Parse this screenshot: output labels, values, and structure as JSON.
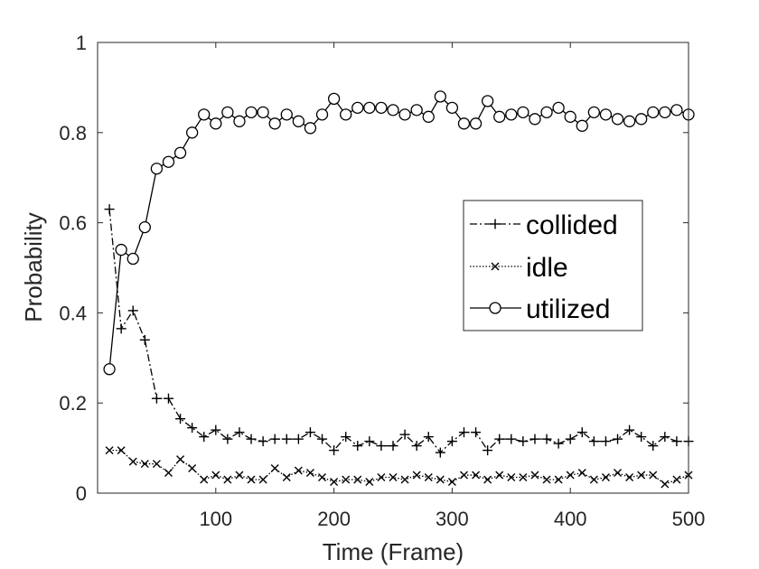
{
  "chart_data": {
    "type": "line",
    "title": "",
    "xlabel": "Time (Frame)",
    "ylabel": "Probability",
    "xlim": [
      0,
      500
    ],
    "ylim": [
      0,
      1
    ],
    "xticks": [
      100,
      200,
      300,
      400,
      500
    ],
    "yticks": [
      0,
      0.2,
      0.4,
      0.6,
      0.8,
      1
    ],
    "ytick_labels": [
      "0",
      "0.2",
      "0.4",
      "0.6",
      "0.8",
      "1"
    ],
    "grid": false,
    "legend_position": "right",
    "x": [
      10,
      20,
      30,
      40,
      50,
      60,
      70,
      80,
      90,
      100,
      110,
      120,
      130,
      140,
      150,
      160,
      170,
      180,
      190,
      200,
      210,
      220,
      230,
      240,
      250,
      260,
      270,
      280,
      290,
      300,
      310,
      320,
      330,
      340,
      350,
      360,
      370,
      380,
      390,
      400,
      410,
      420,
      430,
      440,
      450,
      460,
      470,
      480,
      490,
      500
    ],
    "series": [
      {
        "name": "collided",
        "marker": "plus",
        "line_style": "dashdot",
        "color": "#000000",
        "values": [
          0.63,
          0.365,
          0.405,
          0.34,
          0.21,
          0.21,
          0.165,
          0.145,
          0.125,
          0.14,
          0.12,
          0.135,
          0.12,
          0.115,
          0.12,
          0.12,
          0.12,
          0.135,
          0.12,
          0.095,
          0.125,
          0.105,
          0.115,
          0.105,
          0.105,
          0.13,
          0.105,
          0.125,
          0.09,
          0.115,
          0.135,
          0.135,
          0.095,
          0.12,
          0.12,
          0.115,
          0.12,
          0.12,
          0.11,
          0.12,
          0.135,
          0.115,
          0.115,
          0.12,
          0.14,
          0.125,
          0.105,
          0.125,
          0.115,
          0.115
        ]
      },
      {
        "name": "idle",
        "marker": "x",
        "line_style": "dotted",
        "color": "#000000",
        "values": [
          0.095,
          0.095,
          0.07,
          0.065,
          0.065,
          0.045,
          0.075,
          0.055,
          0.03,
          0.04,
          0.03,
          0.04,
          0.03,
          0.03,
          0.055,
          0.035,
          0.05,
          0.045,
          0.035,
          0.025,
          0.03,
          0.03,
          0.025,
          0.035,
          0.035,
          0.03,
          0.04,
          0.035,
          0.03,
          0.025,
          0.04,
          0.04,
          0.03,
          0.04,
          0.035,
          0.035,
          0.04,
          0.03,
          0.03,
          0.04,
          0.045,
          0.03,
          0.035,
          0.045,
          0.035,
          0.04,
          0.04,
          0.02,
          0.03,
          0.04
        ]
      },
      {
        "name": "utilized",
        "marker": "circle",
        "line_style": "solid",
        "color": "#000000",
        "values": [
          0.275,
          0.54,
          0.52,
          0.59,
          0.72,
          0.735,
          0.755,
          0.8,
          0.84,
          0.82,
          0.845,
          0.825,
          0.845,
          0.845,
          0.82,
          0.84,
          0.825,
          0.81,
          0.84,
          0.875,
          0.84,
          0.855,
          0.855,
          0.855,
          0.85,
          0.84,
          0.85,
          0.835,
          0.88,
          0.855,
          0.82,
          0.82,
          0.87,
          0.835,
          0.84,
          0.845,
          0.83,
          0.845,
          0.855,
          0.835,
          0.815,
          0.845,
          0.84,
          0.83,
          0.825,
          0.83,
          0.845,
          0.845,
          0.85,
          0.84
        ]
      }
    ]
  }
}
